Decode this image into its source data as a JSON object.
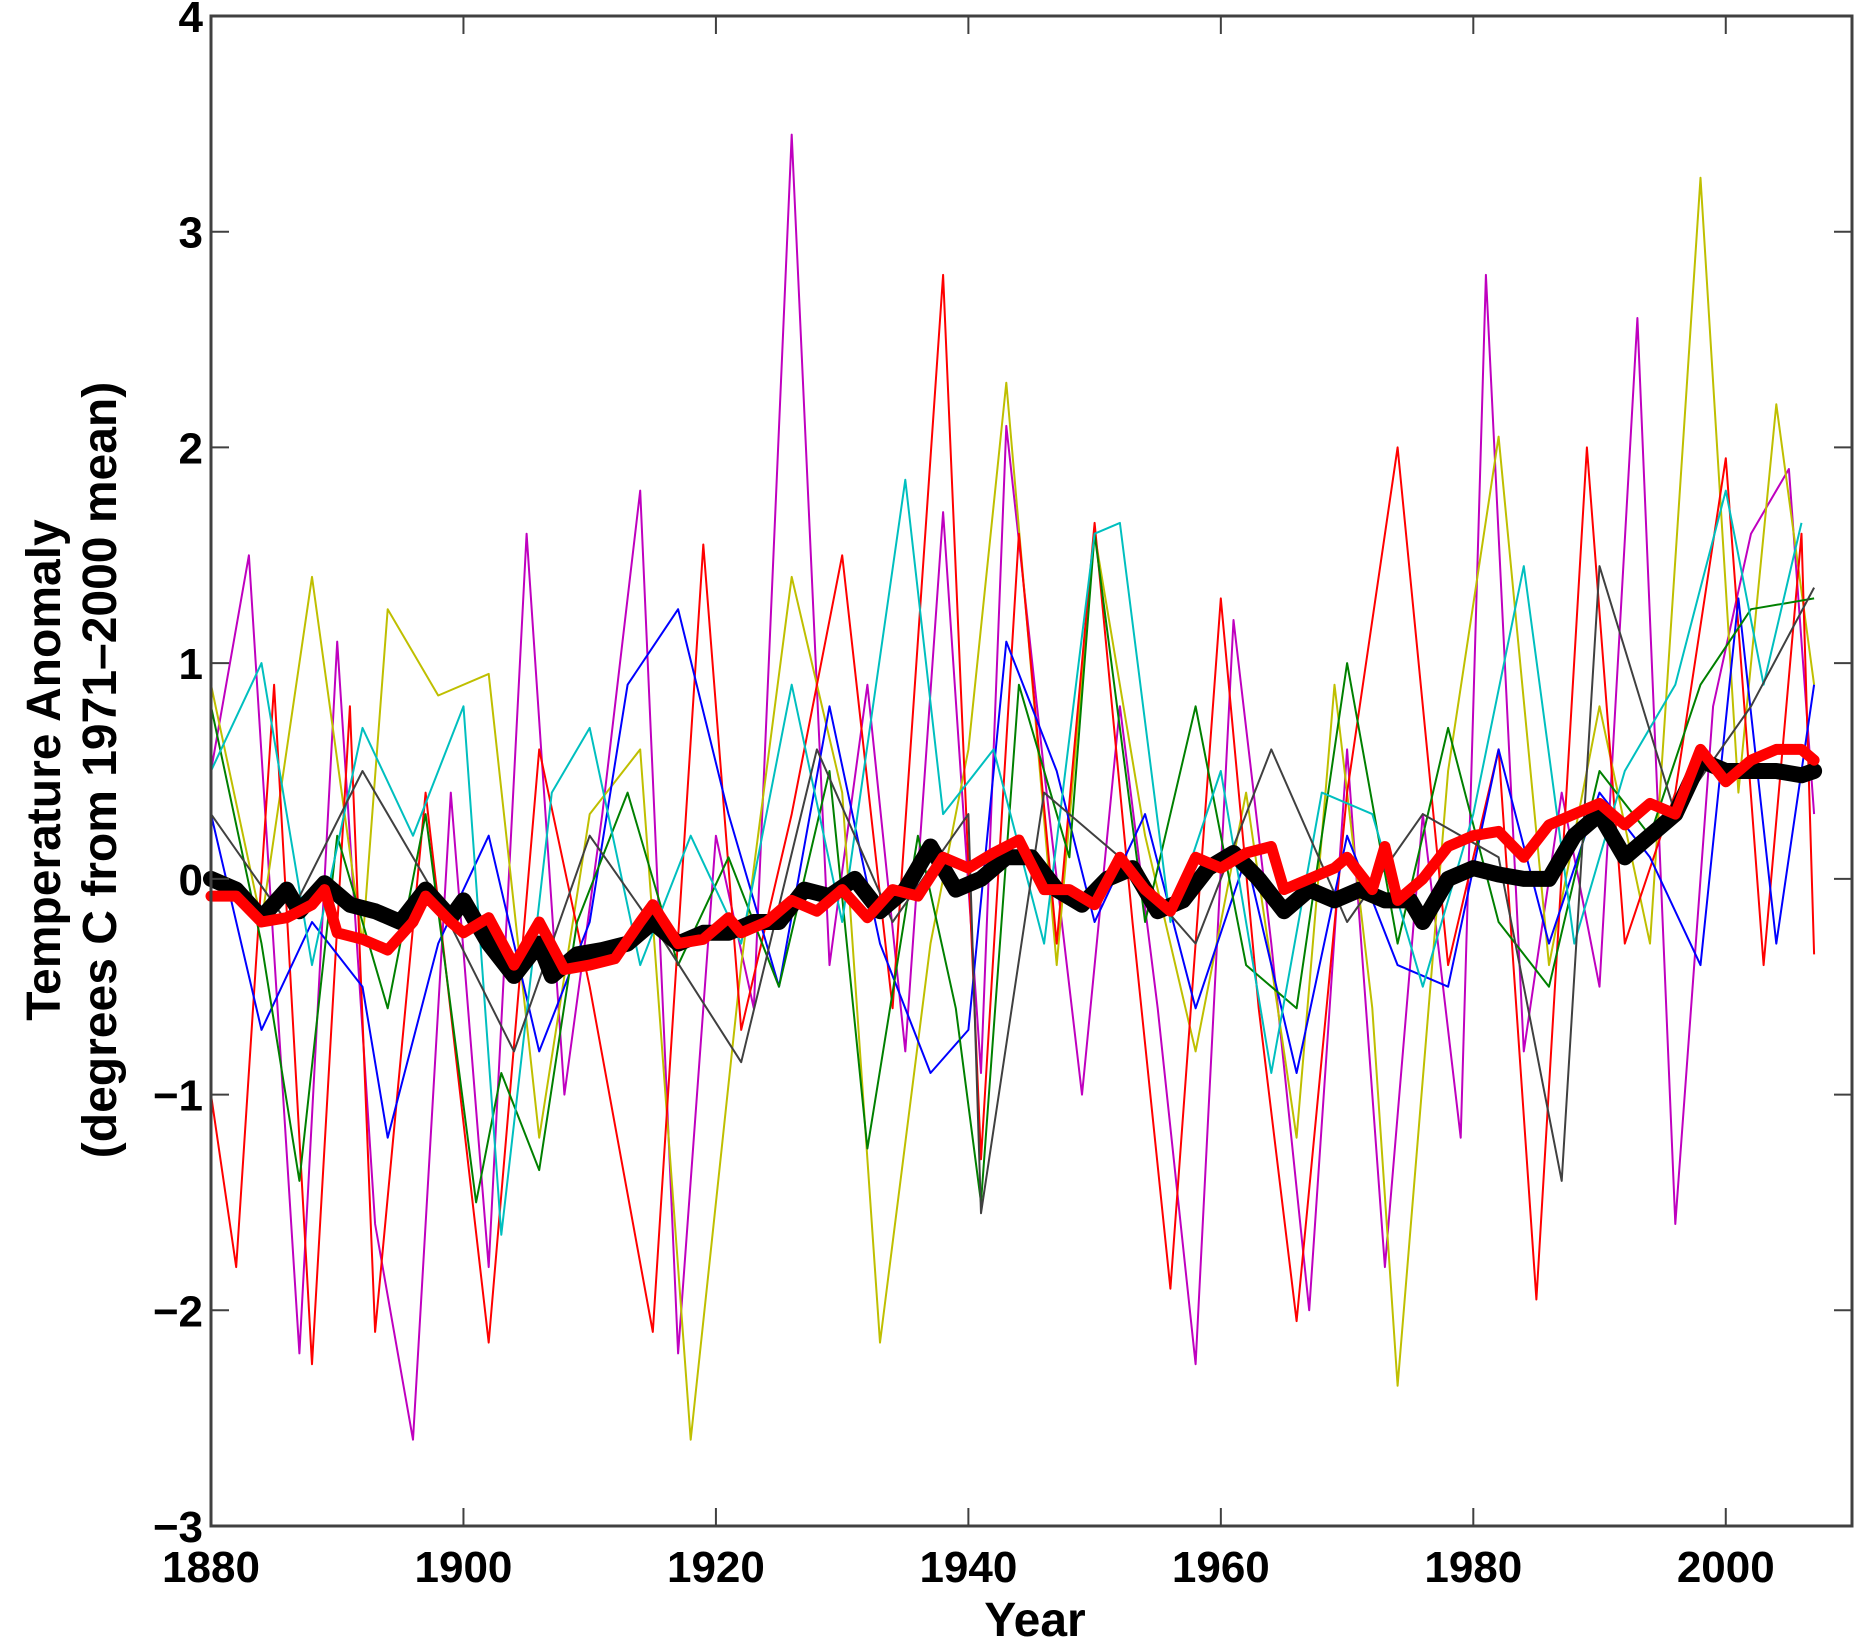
{
  "chart_data": {
    "type": "line",
    "title": "",
    "xlabel": "Year",
    "ylabel_line1": "Temperature Anomaly",
    "ylabel_line2": "(degrees C from 1971–2000 mean)",
    "xlim": [
      1880,
      2010
    ],
    "ylim": [
      -3,
      4
    ],
    "xticks": [
      1880,
      1900,
      1920,
      1940,
      1960,
      1980,
      2000
    ],
    "xtick_labels": [
      "1880",
      "1900",
      "1920",
      "1940",
      "1960",
      "1980",
      "2000"
    ],
    "yticks": [
      -3,
      -2,
      -1,
      0,
      1,
      2,
      3,
      4
    ],
    "ytick_labels": [
      "−3",
      "−2",
      "−1",
      "0",
      "1",
      "2",
      "3",
      "4"
    ],
    "grid": false,
    "legend": "none",
    "station_series": [
      {
        "color": "#bf00bf",
        "x": [
          1880,
          1883,
          1887,
          1890,
          1893,
          1896,
          1899,
          1902,
          1905,
          1908,
          1911,
          1914,
          1917,
          1920,
          1923,
          1926,
          1929,
          1932,
          1935,
          1938,
          1941,
          1943,
          1946,
          1949,
          1952,
          1955,
          1958,
          1961,
          1964,
          1967,
          1970,
          1973,
          1976,
          1979,
          1981,
          1984,
          1987,
          1990,
          1993,
          1996,
          1999,
          2002,
          2005,
          2007
        ],
        "y": [
          0.5,
          1.5,
          -2.2,
          1.1,
          -1.6,
          -2.6,
          0.4,
          -1.8,
          1.6,
          -1.0,
          0.3,
          1.8,
          -2.2,
          0.2,
          -0.6,
          3.45,
          -0.4,
          0.9,
          -0.8,
          1.7,
          -0.9,
          2.1,
          0.5,
          -1.0,
          0.8,
          -0.6,
          -2.25,
          1.2,
          -0.3,
          -2.0,
          0.6,
          -1.8,
          0.3,
          -1.2,
          2.8,
          -0.8,
          0.4,
          -0.5,
          2.6,
          -1.6,
          0.8,
          1.6,
          1.9,
          0.3
        ]
      },
      {
        "color": "#bfbf00",
        "x": [
          1880,
          1884,
          1888,
          1892,
          1894,
          1898,
          1902,
          1906,
          1910,
          1914,
          1918,
          1922,
          1926,
          1930,
          1933,
          1937,
          1940,
          1943,
          1947,
          1950,
          1954,
          1958,
          1962,
          1966,
          1969,
          1972,
          1974,
          1978,
          1982,
          1986,
          1990,
          1994,
          1998,
          2001,
          2004,
          2007
        ],
        "y": [
          0.9,
          -0.2,
          1.4,
          -0.3,
          1.25,
          0.85,
          0.95,
          -1.2,
          0.3,
          0.6,
          -2.6,
          -0.4,
          1.4,
          0.4,
          -2.15,
          -0.3,
          0.6,
          2.3,
          -0.4,
          1.6,
          0.2,
          -0.8,
          0.4,
          -1.2,
          0.9,
          -0.6,
          -2.35,
          0.5,
          2.05,
          -0.4,
          0.8,
          -0.3,
          3.25,
          0.4,
          2.2,
          0.9
        ]
      },
      {
        "color": "#ff0000",
        "x": [
          1880,
          1882,
          1885,
          1888,
          1891,
          1893,
          1897,
          1902,
          1906,
          1910,
          1915,
          1919,
          1922,
          1926,
          1930,
          1934,
          1938,
          1941,
          1944,
          1947,
          1950,
          1953,
          1956,
          1960,
          1963,
          1966,
          1970,
          1974,
          1978,
          1982,
          1985,
          1989,
          1992,
          1996,
          2000,
          2003,
          2006,
          2007
        ],
        "y": [
          -1.0,
          -1.8,
          0.9,
          -2.25,
          0.8,
          -2.1,
          0.4,
          -2.15,
          0.6,
          -0.5,
          -2.1,
          1.55,
          -0.7,
          0.3,
          1.5,
          -0.6,
          2.8,
          -1.3,
          1.6,
          -0.3,
          1.65,
          -0.2,
          -1.9,
          1.3,
          -0.6,
          -2.05,
          0.4,
          2.0,
          -0.4,
          0.6,
          -1.95,
          2.0,
          -0.3,
          0.4,
          1.95,
          -0.4,
          1.6,
          -0.35
        ]
      },
      {
        "color": "#0000ff",
        "x": [
          1880,
          1884,
          1888,
          1892,
          1894,
          1898,
          1902,
          1906,
          1910,
          1913,
          1917,
          1921,
          1925,
          1929,
          1933,
          1937,
          1940,
          1943,
          1947,
          1950,
          1954,
          1958,
          1962,
          1966,
          1970,
          1974,
          1978,
          1982,
          1986,
          1990,
          1994,
          1998,
          2001,
          2004,
          2007
        ],
        "y": [
          0.3,
          -0.7,
          -0.2,
          -0.5,
          -1.2,
          -0.3,
          0.2,
          -0.8,
          -0.2,
          0.9,
          1.25,
          0.3,
          -0.5,
          0.8,
          -0.3,
          -0.9,
          -0.7,
          1.1,
          0.5,
          -0.2,
          0.3,
          -0.6,
          0.1,
          -0.9,
          0.2,
          -0.4,
          -0.5,
          0.6,
          -0.3,
          0.4,
          0.1,
          -0.4,
          1.3,
          -0.3,
          0.9
        ]
      },
      {
        "color": "#008000",
        "x": [
          1880,
          1884,
          1887,
          1890,
          1894,
          1897,
          1901,
          1903,
          1906,
          1909,
          1913,
          1917,
          1921,
          1925,
          1929,
          1932,
          1936,
          1939,
          1941,
          1944,
          1948,
          1950,
          1954,
          1958,
          1962,
          1966,
          1970,
          1974,
          1978,
          1982,
          1986,
          1990,
          1994,
          1998,
          2002,
          2007
        ],
        "y": [
          0.8,
          -0.3,
          -1.4,
          0.2,
          -0.6,
          0.3,
          -1.5,
          -0.9,
          -1.35,
          -0.2,
          0.4,
          -0.4,
          0.1,
          -0.5,
          0.5,
          -1.25,
          0.2,
          -0.6,
          -1.5,
          0.9,
          0.1,
          1.6,
          -0.2,
          0.8,
          -0.4,
          -0.6,
          1.0,
          -0.3,
          0.7,
          -0.2,
          -0.5,
          0.5,
          0.2,
          0.9,
          1.25,
          1.3
        ]
      },
      {
        "color": "#00bfbf",
        "x": [
          1880,
          1884,
          1888,
          1892,
          1896,
          1900,
          1903,
          1907,
          1910,
          1914,
          1918,
          1922,
          1926,
          1930,
          1935,
          1938,
          1942,
          1946,
          1950,
          1952,
          1956,
          1960,
          1964,
          1968,
          1972,
          1976,
          1980,
          1984,
          1988,
          1992,
          1996,
          2000,
          2003,
          2006
        ],
        "y": [
          0.5,
          1.0,
          -0.4,
          0.7,
          0.2,
          0.8,
          -1.65,
          0.4,
          0.7,
          -0.4,
          0.2,
          -0.3,
          0.9,
          -0.2,
          1.85,
          0.3,
          0.6,
          -0.3,
          1.6,
          1.65,
          -0.2,
          0.5,
          -0.9,
          0.4,
          0.3,
          -0.5,
          0.3,
          1.45,
          -0.3,
          0.5,
          0.9,
          1.8,
          0.9,
          1.65
        ]
      },
      {
        "color": "#404040",
        "x": [
          1880,
          1886,
          1892,
          1898,
          1904,
          1910,
          1916,
          1922,
          1928,
          1934,
          1940,
          1941,
          1946,
          1952,
          1958,
          1964,
          1970,
          1976,
          1982,
          1987,
          1990,
          1996,
          2002,
          2007
        ],
        "y": [
          0.3,
          -0.2,
          0.5,
          -0.1,
          -0.8,
          0.2,
          -0.3,
          -0.85,
          0.6,
          -0.2,
          0.3,
          -1.55,
          0.4,
          0.1,
          -0.3,
          0.6,
          -0.2,
          0.3,
          0.1,
          -1.4,
          1.45,
          0.3,
          0.8,
          1.35
        ]
      }
    ],
    "series": [
      {
        "name": "black-mean",
        "color": "#000000",
        "x": [
          1880,
          1882,
          1884,
          1886,
          1887,
          1889,
          1891,
          1893,
          1895,
          1897,
          1899,
          1900,
          1902,
          1904,
          1906,
          1907,
          1909,
          1911,
          1913,
          1915,
          1917,
          1919,
          1921,
          1923,
          1925,
          1927,
          1929,
          1931,
          1933,
          1935,
          1937,
          1939,
          1941,
          1943,
          1945,
          1947,
          1949,
          1951,
          1953,
          1955,
          1957,
          1959,
          1961,
          1963,
          1965,
          1967,
          1969,
          1971,
          1973,
          1975,
          1976,
          1978,
          1980,
          1982,
          1984,
          1986,
          1988,
          1990,
          1992,
          1994,
          1996,
          1998,
          2000,
          2002,
          2004,
          2006,
          2007
        ],
        "y": [
          0.0,
          -0.05,
          -0.18,
          -0.05,
          -0.15,
          -0.02,
          -0.12,
          -0.15,
          -0.2,
          -0.05,
          -0.18,
          -0.1,
          -0.3,
          -0.45,
          -0.3,
          -0.45,
          -0.35,
          -0.33,
          -0.3,
          -0.2,
          -0.3,
          -0.25,
          -0.25,
          -0.2,
          -0.2,
          -0.05,
          -0.08,
          0.0,
          -0.15,
          -0.05,
          0.15,
          -0.05,
          0.0,
          0.1,
          0.1,
          -0.05,
          -0.12,
          0.0,
          0.05,
          -0.15,
          -0.1,
          0.05,
          0.12,
          0.0,
          -0.15,
          -0.05,
          -0.1,
          -0.05,
          -0.1,
          -0.1,
          -0.2,
          0.0,
          0.05,
          0.02,
          0.0,
          0.0,
          0.2,
          0.3,
          0.1,
          0.2,
          0.3,
          0.55,
          0.5,
          0.5,
          0.5,
          0.48,
          0.5
        ]
      },
      {
        "name": "red-mean",
        "color": "#ff0000",
        "x": [
          1880,
          1882,
          1884,
          1886,
          1888,
          1889,
          1890,
          1892,
          1894,
          1896,
          1897,
          1899,
          1900,
          1902,
          1904,
          1906,
          1908,
          1910,
          1912,
          1914,
          1915,
          1917,
          1919,
          1921,
          1922,
          1924,
          1926,
          1928,
          1930,
          1932,
          1934,
          1936,
          1938,
          1940,
          1942,
          1944,
          1946,
          1948,
          1950,
          1952,
          1954,
          1956,
          1958,
          1960,
          1962,
          1964,
          1965,
          1967,
          1969,
          1970,
          1972,
          1973,
          1974,
          1976,
          1978,
          1980,
          1982,
          1984,
          1986,
          1988,
          1990,
          1992,
          1994,
          1996,
          1998,
          2000,
          2002,
          2004,
          2006,
          2007
        ],
        "y": [
          -0.08,
          -0.08,
          -0.2,
          -0.18,
          -0.12,
          -0.05,
          -0.25,
          -0.28,
          -0.33,
          -0.2,
          -0.08,
          -0.2,
          -0.25,
          -0.18,
          -0.4,
          -0.2,
          -0.42,
          -0.4,
          -0.37,
          -0.2,
          -0.12,
          -0.3,
          -0.28,
          -0.18,
          -0.25,
          -0.2,
          -0.1,
          -0.15,
          -0.05,
          -0.18,
          -0.05,
          -0.08,
          0.1,
          0.05,
          0.12,
          0.18,
          -0.05,
          -0.05,
          -0.12,
          0.1,
          -0.05,
          -0.15,
          0.1,
          0.05,
          0.12,
          0.15,
          -0.05,
          0.0,
          0.05,
          0.1,
          -0.05,
          0.15,
          -0.1,
          0.0,
          0.15,
          0.2,
          0.22,
          0.1,
          0.25,
          0.3,
          0.35,
          0.25,
          0.35,
          0.3,
          0.6,
          0.45,
          0.55,
          0.6,
          0.6,
          0.55
        ]
      }
    ]
  }
}
